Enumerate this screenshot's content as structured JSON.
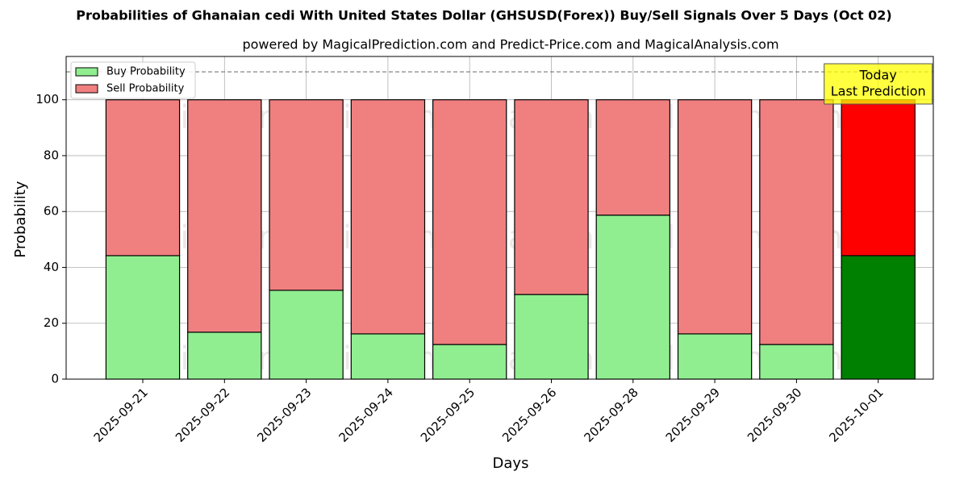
{
  "chart_data": {
    "type": "stacked_bar",
    "title": "Probabilities of Ghanaian cedi With United States Dollar (GHSUSD(Forex)) Buy/Sell Signals Over 5 Days (Oct 02)",
    "subtitle": "powered by MagicalPrediction.com and Predict-Price.com and MagicalAnalysis.com",
    "x_label": "Days",
    "y_label": "Probability",
    "categories": [
      "2025-09-21",
      "2025-09-22",
      "2025-09-23",
      "2025-09-24",
      "2025-09-25",
      "2025-09-26",
      "2025-09-28",
      "2025-09-29",
      "2025-09-30",
      "2025-10-01"
    ],
    "series": [
      {
        "name": "Buy Probability",
        "color": "#90ee90",
        "highlight_color": "#008000",
        "values": [
          44.2,
          16.8,
          31.8,
          16.2,
          12.4,
          30.3,
          58.7,
          16.2,
          12.4,
          44.2
        ]
      },
      {
        "name": "Sell Probability",
        "color": "#f08080",
        "highlight_color": "#ff0000",
        "values": [
          55.8,
          83.2,
          68.2,
          83.8,
          87.6,
          69.7,
          41.3,
          83.8,
          87.6,
          55.8
        ]
      }
    ],
    "highlight_last": true,
    "ylim": [
      0,
      115.5
    ],
    "yticks": [
      0,
      20,
      40,
      60,
      80,
      100
    ],
    "grid": true,
    "legend": "upper-left",
    "reference_line": 110,
    "annotation_lines": [
      "Today",
      "Last Prediction"
    ],
    "watermarks": [
      "MagicalAnalysis.com",
      "MagicalPrediction.com"
    ]
  }
}
